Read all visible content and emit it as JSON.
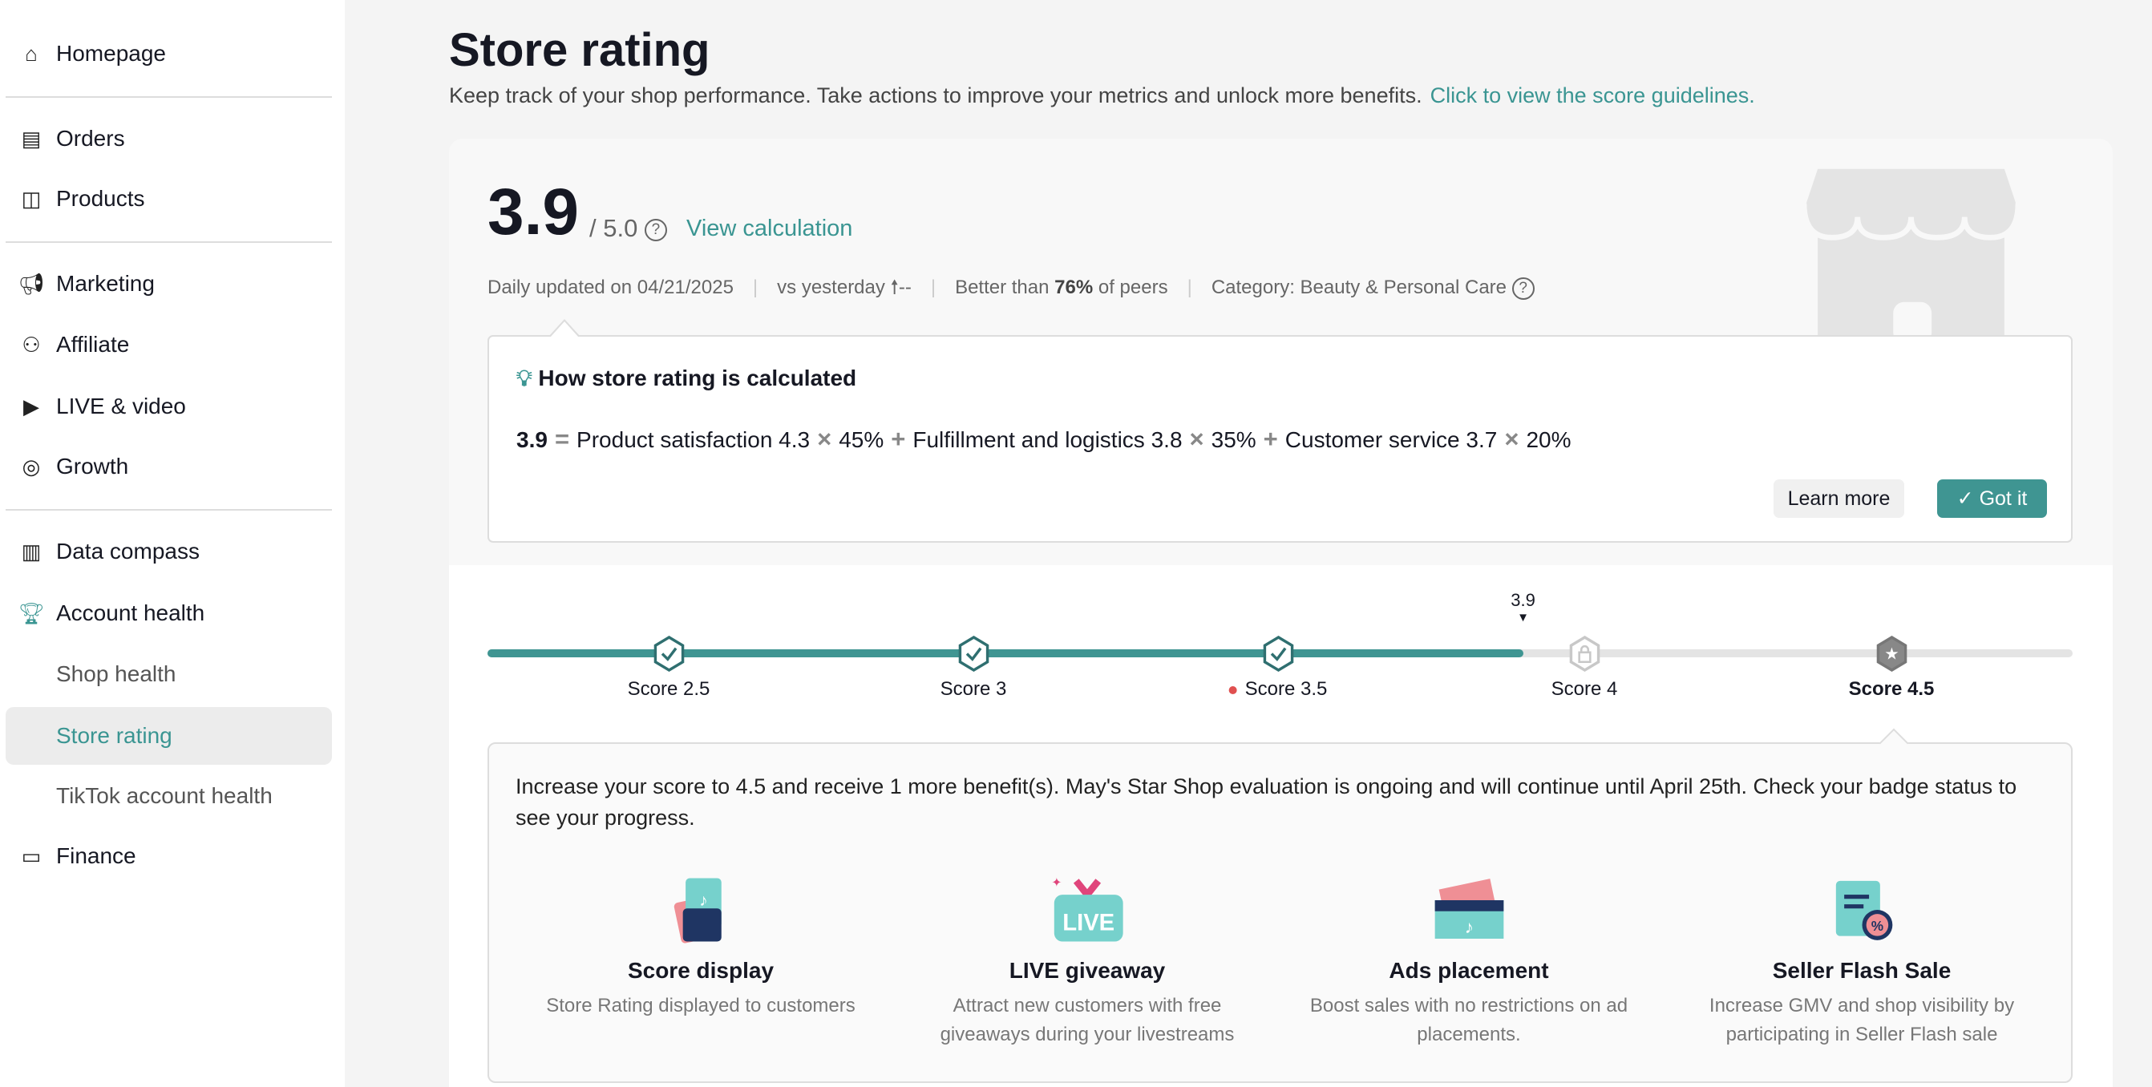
{
  "sidebar": {
    "items": [
      {
        "label": "Homepage",
        "icon": "home-icon"
      },
      {
        "label": "Orders",
        "icon": "clipboard-icon"
      },
      {
        "label": "Products",
        "icon": "bag-icon"
      },
      {
        "label": "Marketing",
        "icon": "megaphone-icon"
      },
      {
        "label": "Affiliate",
        "icon": "users-icon"
      },
      {
        "label": "LIVE & video",
        "icon": "video-icon"
      },
      {
        "label": "Growth",
        "icon": "medal-icon"
      },
      {
        "label": "Data compass",
        "icon": "chart-icon"
      },
      {
        "label": "Account health",
        "icon": "trophy-icon"
      },
      {
        "label": "Shop health"
      },
      {
        "label": "Store rating"
      },
      {
        "label": "TikTok account health"
      },
      {
        "label": "Finance",
        "icon": "card-icon"
      }
    ]
  },
  "header": {
    "title": "Store rating",
    "subtitle": "Keep track of your shop performance. Take actions to improve your metrics and unlock more benefits.",
    "guidelines_link": "Click to view the score guidelines."
  },
  "score": {
    "value": "3.9",
    "out_of": "/ 5.0",
    "view_calculation": "View calculation",
    "updated": "Daily updated on 04/21/2025",
    "vs_yesterday": "vs yesterday",
    "vs_value": "--",
    "better_prefix": "Better than ",
    "better_pct": "76%",
    "better_suffix": " of peers",
    "category": "Category: Beauty & Personal Care"
  },
  "calc": {
    "title": "How store rating is calculated",
    "total": "3.9",
    "terms": [
      {
        "label": "Product satisfaction 4.3",
        "weight": "45%"
      },
      {
        "label": "Fulfillment and logistics 3.8",
        "weight": "35%"
      },
      {
        "label": "Customer service 3.7",
        "weight": "20%"
      }
    ],
    "learn_more": "Learn more",
    "got_it": "Got it"
  },
  "progress": {
    "current": "3.9",
    "current_value": 3.9,
    "milestones": [
      {
        "label": "Score 2.5",
        "state": "achieved"
      },
      {
        "label": "Score 3",
        "state": "achieved"
      },
      {
        "label": "Score 3.5",
        "state": "achieved",
        "dot": true
      },
      {
        "label": "Score 4",
        "state": "locked"
      },
      {
        "label": "Score 4.5",
        "state": "selected"
      }
    ]
  },
  "benefits": {
    "text": "Increase your score to 4.5 and receive 1 more benefit(s). May's Star Shop evaluation is ongoing and will continue until April 25th. Check your badge status to see your progress.",
    "items": [
      {
        "title": "Score display",
        "desc": "Store Rating displayed to customers"
      },
      {
        "title": "LIVE giveaway",
        "desc": "Attract new customers with free giveaways during your livestreams",
        "icon_text": "LIVE"
      },
      {
        "title": "Ads placement",
        "desc": "Boost sales with no restrictions on ad placements."
      },
      {
        "title": "Seller Flash Sale",
        "desc": "Increase GMV and shop visibility by participating in Seller Flash sale",
        "icon_text": "%"
      }
    ]
  },
  "colors": {
    "accent": "#3f9592",
    "locked": "#c8c8c8",
    "dot": "#e05050"
  }
}
